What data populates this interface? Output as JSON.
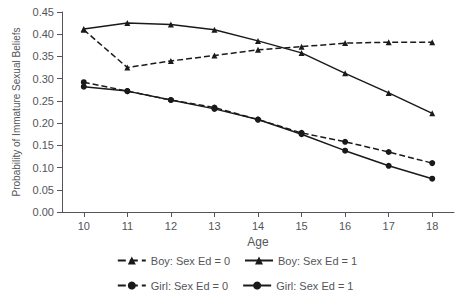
{
  "chart_data": {
    "type": "line",
    "x": [
      10,
      11,
      12,
      13,
      14,
      15,
      16,
      17,
      18
    ],
    "series": [
      {
        "name": "Boy: Sex Ed = 0",
        "color": "#1a1a1a",
        "marker": "triangle",
        "line_style": "dashed",
        "values": [
          0.41,
          0.325,
          0.34,
          0.352,
          0.365,
          0.372,
          0.38,
          0.382,
          0.382
        ]
      },
      {
        "name": "Boy: Sex Ed = 1",
        "color": "#1a1a1a",
        "marker": "triangle",
        "line_style": "solid",
        "values": [
          0.412,
          0.425,
          0.422,
          0.41,
          0.385,
          0.358,
          0.312,
          0.268,
          0.222
        ]
      },
      {
        "name": "Girl: Sex Ed = 0",
        "color": "#1a1a1a",
        "marker": "circle",
        "line_style": "dashed",
        "values": [
          0.292,
          0.272,
          0.252,
          0.235,
          0.208,
          0.178,
          0.158,
          0.135,
          0.11
        ]
      },
      {
        "name": "Girl: Sex Ed = 1",
        "color": "#1a1a1a",
        "marker": "circle",
        "line_style": "solid",
        "values": [
          0.282,
          0.272,
          0.252,
          0.232,
          0.208,
          0.175,
          0.138,
          0.104,
          0.075
        ]
      }
    ],
    "xlabel": "Age",
    "ylabel": "Probability of Immature Sexual Beliefs",
    "xlim": [
      9.5,
      18.5
    ],
    "xticks": [
      10,
      11,
      12,
      13,
      14,
      15,
      16,
      17,
      18
    ],
    "ylim": [
      0,
      0.45
    ],
    "yticks": [
      {
        "value": 0,
        "label": "0.00"
      },
      0.05,
      {
        "value": 0.1,
        "label": "0.10"
      },
      0.15,
      {
        "value": 0.2,
        "label": "0.20"
      },
      0.25,
      {
        "value": 0.3,
        "label": "0.30"
      },
      0.35,
      {
        "value": 0.4,
        "label": "0.40"
      },
      0.45
    ],
    "grid": false,
    "legend": "bottom"
  }
}
